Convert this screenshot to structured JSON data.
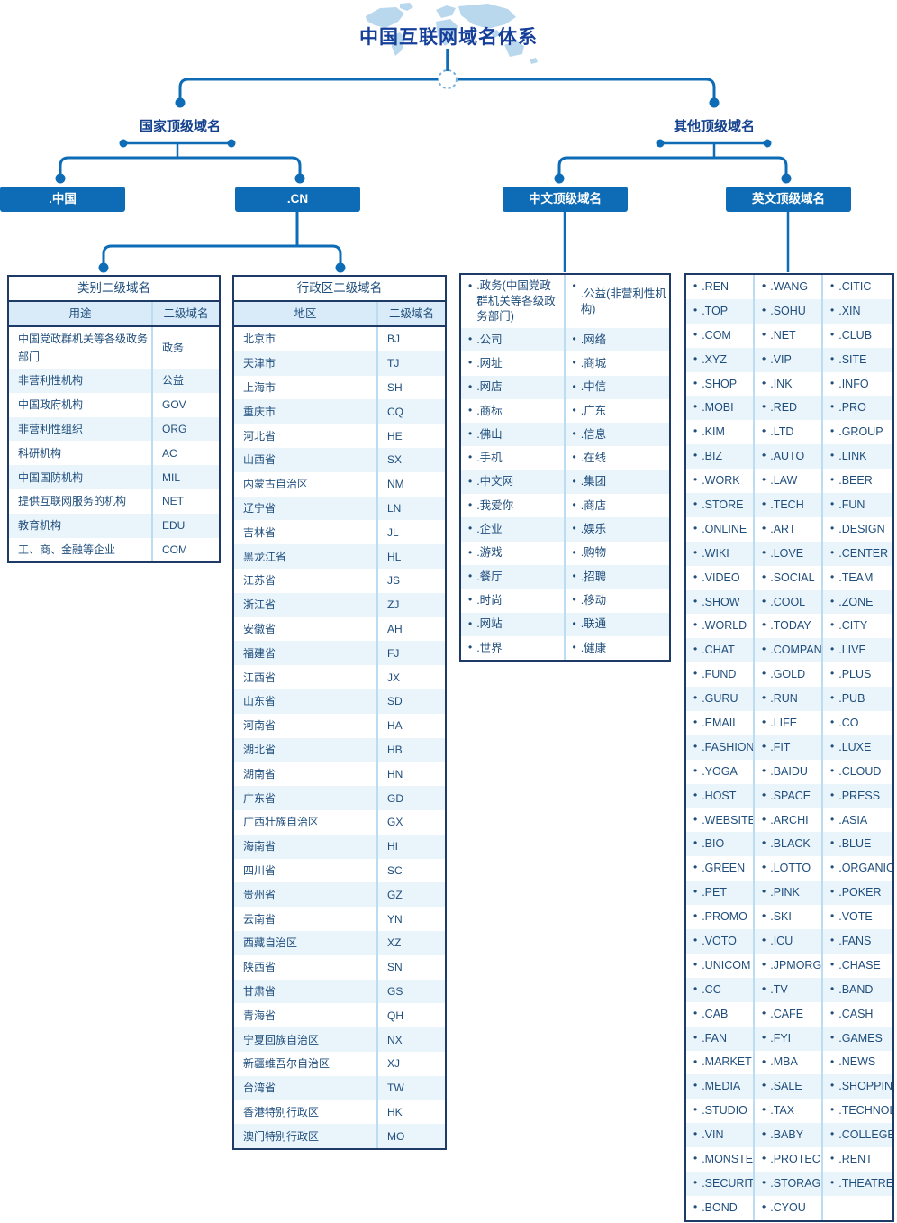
{
  "title": "中国互联网域名体系",
  "tree": {
    "country_branch_label": "国家顶级域名",
    "other_branch_label": "其他顶级域名",
    "nodes": {
      "cn_idn": ".中国",
      "cn": ".CN",
      "chinese_tld": "中文顶级域名",
      "english_tld": "英文顶级域名"
    }
  },
  "category_table": {
    "title": "类别二级域名",
    "headers": [
      "用途",
      "二级域名"
    ],
    "rows": [
      [
        "中国党政群机关等各级政务部门",
        "政务"
      ],
      [
        "非营利性机构",
        "公益"
      ],
      [
        "中国政府机构",
        "GOV"
      ],
      [
        "非营利性组织",
        "ORG"
      ],
      [
        "科研机构",
        "AC"
      ],
      [
        "中国国防机构",
        "MIL"
      ],
      [
        "提供互联网服务的机构",
        "NET"
      ],
      [
        "教育机构",
        "EDU"
      ],
      [
        "工、商、金融等企业",
        "COM"
      ]
    ]
  },
  "region_table": {
    "title": "行政区二级域名",
    "headers": [
      "地区",
      "二级域名"
    ],
    "rows": [
      [
        "北京市",
        "BJ"
      ],
      [
        "天津市",
        "TJ"
      ],
      [
        "上海市",
        "SH"
      ],
      [
        "重庆市",
        "CQ"
      ],
      [
        "河北省",
        "HE"
      ],
      [
        "山西省",
        "SX"
      ],
      [
        "内蒙古自治区",
        "NM"
      ],
      [
        "辽宁省",
        "LN"
      ],
      [
        "吉林省",
        "JL"
      ],
      [
        "黑龙江省",
        "HL"
      ],
      [
        "江苏省",
        "JS"
      ],
      [
        "浙江省",
        "ZJ"
      ],
      [
        "安徽省",
        "AH"
      ],
      [
        "福建省",
        "FJ"
      ],
      [
        "江西省",
        "JX"
      ],
      [
        "山东省",
        "SD"
      ],
      [
        "河南省",
        "HA"
      ],
      [
        "湖北省",
        "HB"
      ],
      [
        "湖南省",
        "HN"
      ],
      [
        "广东省",
        "GD"
      ],
      [
        "广西壮族自治区",
        "GX"
      ],
      [
        "海南省",
        "HI"
      ],
      [
        "四川省",
        "SC"
      ],
      [
        "贵州省",
        "GZ"
      ],
      [
        "云南省",
        "YN"
      ],
      [
        "西藏自治区",
        "XZ"
      ],
      [
        "陕西省",
        "SN"
      ],
      [
        "甘肃省",
        "GS"
      ],
      [
        "青海省",
        "QH"
      ],
      [
        "宁夏回族自治区",
        "NX"
      ],
      [
        "新疆维吾尔自治区",
        "XJ"
      ],
      [
        "台湾省",
        "TW"
      ],
      [
        "香港特别行政区",
        "HK"
      ],
      [
        "澳门特别行政区",
        "MO"
      ]
    ]
  },
  "chinese_tlds": {
    "rows": [
      [
        ".政务(中国党政群机关等各级政务部门)",
        ".公益(非营利性机构)"
      ],
      [
        ".公司",
        ".网络"
      ],
      [
        ".网址",
        ".商城"
      ],
      [
        ".网店",
        ".中信"
      ],
      [
        ".商标",
        ".广东"
      ],
      [
        ".佛山",
        ".信息"
      ],
      [
        ".手机",
        ".在线"
      ],
      [
        ".中文网",
        ".集团"
      ],
      [
        ".我爱你",
        ".商店"
      ],
      [
        ".企业",
        ".娱乐"
      ],
      [
        ".游戏",
        ".购物"
      ],
      [
        ".餐厅",
        ".招聘"
      ],
      [
        ".时尚",
        ".移动"
      ],
      [
        ".网站",
        ".联通"
      ],
      [
        ".世界",
        ".健康"
      ]
    ]
  },
  "english_tlds": {
    "rows": [
      [
        ".REN",
        ".WANG",
        ".CITIC"
      ],
      [
        ".TOP",
        ".SOHU",
        ".XIN"
      ],
      [
        ".COM",
        ".NET",
        ".CLUB"
      ],
      [
        ".XYZ",
        ".VIP",
        ".SITE"
      ],
      [
        ".SHOP",
        ".INK",
        ".INFO"
      ],
      [
        ".MOBI",
        ".RED",
        ".PRO"
      ],
      [
        ".KIM",
        ".LTD",
        ".GROUP"
      ],
      [
        ".BIZ",
        ".AUTO",
        ".LINK"
      ],
      [
        ".WORK",
        ".LAW",
        ".BEER"
      ],
      [
        ".STORE",
        ".TECH",
        ".FUN"
      ],
      [
        ".ONLINE",
        ".ART",
        ".DESIGN"
      ],
      [
        ".WIKI",
        ".LOVE",
        ".CENTER"
      ],
      [
        ".VIDEO",
        ".SOCIAL",
        ".TEAM"
      ],
      [
        ".SHOW",
        ".COOL",
        ".ZONE"
      ],
      [
        ".WORLD",
        ".TODAY",
        ".CITY"
      ],
      [
        ".CHAT",
        ".COMPANY",
        ".LIVE"
      ],
      [
        ".FUND",
        ".GOLD",
        ".PLUS"
      ],
      [
        ".GURU",
        ".RUN",
        ".PUB"
      ],
      [
        ".EMAIL",
        ".LIFE",
        ".CO"
      ],
      [
        ".FASHION",
        ".FIT",
        ".LUXE"
      ],
      [
        ".YOGA",
        ".BAIDU",
        ".CLOUD"
      ],
      [
        ".HOST",
        ".SPACE",
        ".PRESS"
      ],
      [
        ".WEBSITE",
        ".ARCHI",
        ".ASIA"
      ],
      [
        ".BIO",
        ".BLACK",
        ".BLUE"
      ],
      [
        ".GREEN",
        ".LOTTO",
        ".ORGANIC"
      ],
      [
        ".PET",
        ".PINK",
        ".POKER"
      ],
      [
        ".PROMO",
        ".SKI",
        ".VOTE"
      ],
      [
        ".VOTO",
        ".ICU",
        ".FANS"
      ],
      [
        ".UNICOM",
        ".JPMORGAN",
        ".CHASE"
      ],
      [
        ".CC",
        ".TV",
        ".BAND"
      ],
      [
        ".CAB",
        ".CAFE",
        ".CASH"
      ],
      [
        ".FAN",
        ".FYI",
        ".GAMES"
      ],
      [
        ".MARKET",
        ".MBA",
        ".NEWS"
      ],
      [
        ".MEDIA",
        ".SALE",
        ".SHOPPING"
      ],
      [
        ".STUDIO",
        ".TAX",
        ".TECHNOLOGY"
      ],
      [
        ".VIN",
        ".BABY",
        ".COLLEGE"
      ],
      [
        ".MONSTER",
        ".PROTECTION",
        ".RENT"
      ],
      [
        ".SECURITY",
        ".STORAGE",
        ".THEATRE"
      ],
      [
        ".BOND",
        ".CYOU",
        ""
      ]
    ]
  },
  "icons": {
    "bullet": "•"
  },
  "colors": {
    "accent_blue": "#0d6cb5",
    "border_navy": "#1e3a66",
    "text_blue": "#1f4e7c",
    "title_blue": "#163f9a",
    "row_stripe": "#eaf4fb",
    "header_bg": "#d9ebf8",
    "divider_blue": "#bcdcf2",
    "map_blue": "#b9d8ee"
  }
}
